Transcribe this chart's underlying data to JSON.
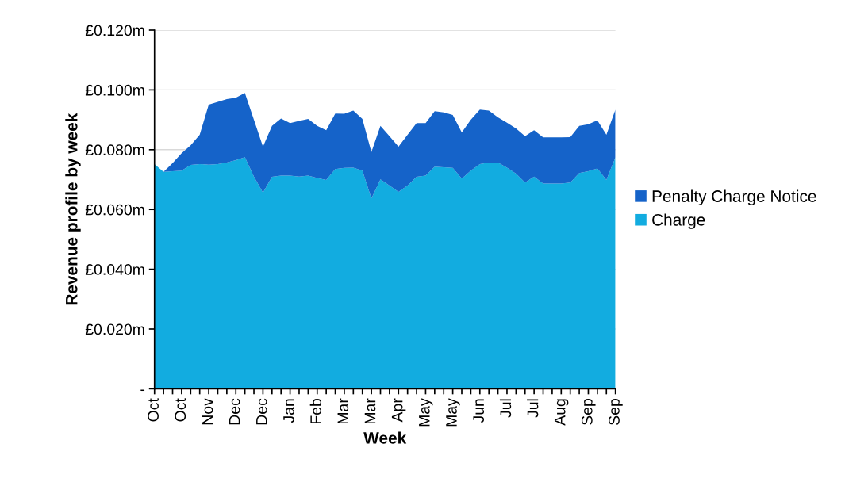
{
  "chart_data": {
    "type": "area",
    "stacked": true,
    "xlabel": "Week",
    "ylabel": "Revenue profile by week",
    "categories": [
      "Oct",
      null,
      null,
      "Oct",
      null,
      null,
      "Nov",
      null,
      null,
      "Dec",
      null,
      null,
      "Dec",
      null,
      null,
      "Jan",
      null,
      null,
      "Feb",
      null,
      null,
      "Mar",
      null,
      null,
      "Mar",
      null,
      null,
      "Apr",
      null,
      null,
      "May",
      null,
      null,
      "May",
      null,
      null,
      "Jun",
      null,
      null,
      "Jul",
      null,
      null,
      "Jul",
      null,
      null,
      "Aug",
      null,
      null,
      "Sep",
      null,
      null,
      "Sep"
    ],
    "series": [
      {
        "name": "Charge",
        "color": "#12ace0",
        "values": [
          0.0752,
          0.0726,
          0.0728,
          0.073,
          0.0749,
          0.0752,
          0.075,
          0.0752,
          0.0757,
          0.0765,
          0.0775,
          0.071,
          0.0656,
          0.0709,
          0.0713,
          0.0713,
          0.071,
          0.0713,
          0.0705,
          0.0699,
          0.0735,
          0.0739,
          0.074,
          0.073,
          0.0637,
          0.0701,
          0.068,
          0.0659,
          0.068,
          0.0709,
          0.0713,
          0.0743,
          0.0741,
          0.0739,
          0.0703,
          0.073,
          0.0752,
          0.0757,
          0.0757,
          0.074,
          0.072,
          0.069,
          0.071,
          0.0687,
          0.0687,
          0.0687,
          0.069,
          0.0722,
          0.0728,
          0.0737,
          0.0699,
          0.0774
        ]
      },
      {
        "name": "Penalty Charge Notice",
        "color": "#1563c9",
        "values": [
          0.0,
          0.0,
          0.0027,
          0.0058,
          0.0066,
          0.0098,
          0.0201,
          0.0208,
          0.0212,
          0.0209,
          0.0215,
          0.019,
          0.0154,
          0.0171,
          0.0191,
          0.0176,
          0.0186,
          0.019,
          0.0175,
          0.0166,
          0.0186,
          0.0181,
          0.0191,
          0.0173,
          0.0155,
          0.0179,
          0.0165,
          0.0151,
          0.017,
          0.018,
          0.0176,
          0.0186,
          0.0184,
          0.0177,
          0.0155,
          0.017,
          0.0182,
          0.0174,
          0.0151,
          0.015,
          0.0151,
          0.0155,
          0.0155,
          0.0154,
          0.0154,
          0.0154,
          0.0152,
          0.0158,
          0.0157,
          0.0161,
          0.0151,
          0.016
        ]
      }
    ],
    "ylim": [
      0,
      0.12
    ],
    "yticks": [
      {
        "value": 0,
        "label": "-"
      },
      {
        "value": 0.02,
        "label": "£0.020m"
      },
      {
        "value": 0.04,
        "label": "£0.040m"
      },
      {
        "value": 0.06,
        "label": "£0.060m"
      },
      {
        "value": 0.08,
        "label": "£0.080m"
      },
      {
        "value": 0.1,
        "label": "£0.100m"
      },
      {
        "value": 0.12,
        "label": "£0.120m"
      }
    ],
    "grid": "y",
    "legend": "right"
  }
}
